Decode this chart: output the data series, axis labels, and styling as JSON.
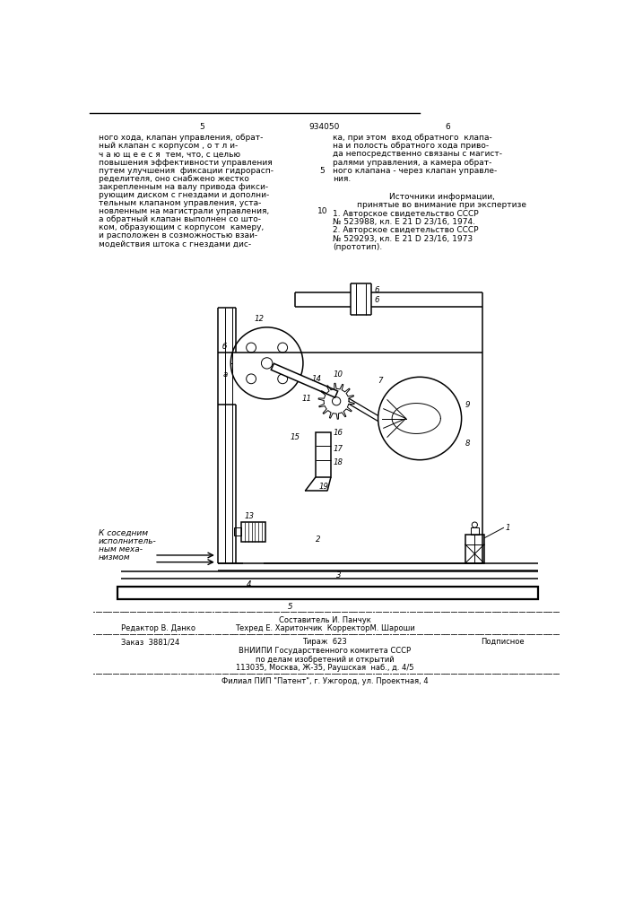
{
  "bg_color": "#ffffff",
  "page_color": "#ffffff",
  "title_number": "934050",
  "col_left_number": "5",
  "col_right_number": "6",
  "text_left_col": [
    "ного хода, клапан управления, обрат-",
    "ный клапан с корпусом , о т л и-",
    "ч а ю щ е е с я  тем, что, с целью",
    "повышения эффективности управления",
    "путем улучшения  фиксации гидрорасп-",
    "ределителя, оно снабжено жестко",
    "закрепленным на валу привода фикси-",
    "рующим диском с гнездами и дополни-",
    "тельным клапаном управления, уста-",
    "новленным на магистрали управления,",
    "а обратный клапан выполнен со што-",
    "ком, образующим с корпусом  камеру,",
    "и расположен в созможностью взаи-",
    "модействия штока с гнездами дис-"
  ],
  "line_number_5_idx": 4,
  "line_number_10_idx": 9,
  "text_right_col": [
    "ка, при этом  вход обратного  клапа-",
    "на и полость обратного хода приво-",
    "да непосредственно связаны с магист-",
    "ралями управления, а камера обрат-",
    "ного клапана - через клапан управле-",
    "ния."
  ],
  "sources_title": "Источники информации,",
  "sources_subtitle": "принятые во внимание при экспертизе",
  "source1": "1. Авторское свидетельство СССР",
  "source1b": "№ 523988, кл. Е 21 D 23/16, 1974.",
  "source2": "2. Авторское свидетельство СССР",
  "source2b": "№ 529293, кл. Е 21 D 23/16, 1973",
  "source2c": "(прототип).",
  "footer_composer": "Составитель И. Панчук",
  "footer_editor": "Редактор В. Данко",
  "footer_techred": "Техред Е. Харитончик  КорректорМ. Шароши",
  "footer_order": "Заказ  3881/24",
  "footer_tirazh": "Тираж  623",
  "footer_podpisnoe": "Подписное",
  "footer_vniip1": "ВНИИПИ Государственного комитета СССР",
  "footer_vniip2": "по делам изобретений и открытий",
  "footer_vniip3": "113035, Москва, Ж-35, Раушская  наб., д. 4/5",
  "footer_filial": "Филиал ПИП \"Патент\", г. Ужгород, ул. Проектная, 4",
  "text_annotation_line1": "К соседним",
  "text_annotation_line2": "исполнитель-",
  "text_annotation_line3": "ным меха-",
  "text_annotation_line4": "низмом"
}
